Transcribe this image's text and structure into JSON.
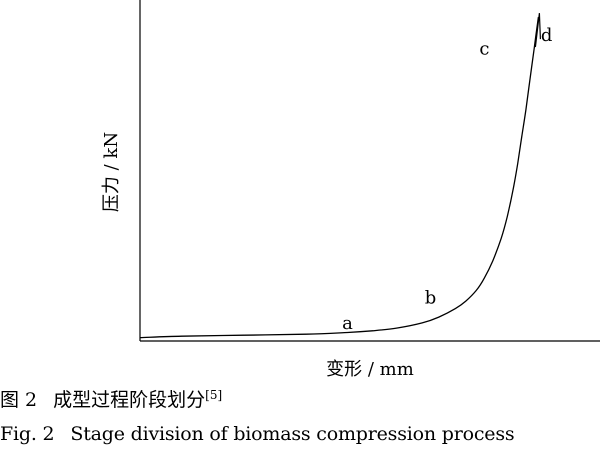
{
  "chart_data": {
    "type": "line",
    "xlabel": "变形 / mm",
    "ylabel": "压力 / kN",
    "grid": false,
    "legend": "none",
    "xlim": [
      0,
      100
    ],
    "ylim": [
      0,
      100
    ],
    "series": [
      {
        "x": [
          0,
          10,
          25,
          40,
          50,
          56,
          62,
          68,
          72,
          76,
          78.5,
          81,
          83,
          85,
          87,
          88.5,
          90,
          91,
          92,
          93,
          94,
          95,
          95.5,
          96
        ],
        "y": [
          1.0,
          1.4,
          1.7,
          2.0,
          2.5,
          3.0,
          3.8,
          5.3,
          7.0,
          9.5,
          11.7,
          14.8,
          18.5,
          23.5,
          30.0,
          36.5,
          45.0,
          52.0,
          60.0,
          68.0,
          77.0,
          86.0,
          90.5,
          95.0
        ]
      }
    ],
    "annotations": [
      {
        "text": "a",
        "x": 50,
        "y": 3.5
      },
      {
        "text": "b",
        "x": 70,
        "y": 11
      },
      {
        "text": "c",
        "x": 83,
        "y": 84
      },
      {
        "text": "d",
        "x": 98,
        "y": 88
      }
    ]
  },
  "caption": {
    "cn_label": "图 2",
    "cn_text": "成型过程阶段划分",
    "cn_ref": "[5]",
    "en_label": "Fig. 2",
    "en_text": "Stage division of biomass compression process"
  },
  "colors": {
    "line": "#000000",
    "background": "#ffffff"
  }
}
